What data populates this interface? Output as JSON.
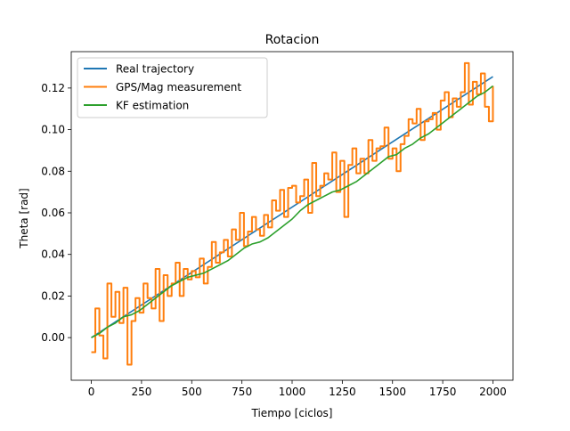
{
  "chart_data": {
    "type": "line",
    "title": "Rotacion",
    "xlabel": "Tiempo [ciclos]",
    "ylabel": "Theta [rad]",
    "xlim": [
      -100,
      2100
    ],
    "ylim": [
      -0.0205,
      0.1375
    ],
    "x_ticks": [
      0,
      250,
      500,
      750,
      1000,
      1250,
      1500,
      1750,
      2000
    ],
    "y_ticks": [
      0.0,
      0.02,
      0.04,
      0.06,
      0.08,
      0.1,
      0.12
    ],
    "x_tick_labels": [
      "0",
      "250",
      "500",
      "750",
      "1000",
      "1250",
      "1500",
      "1750",
      "2000"
    ],
    "y_tick_labels": [
      "0.00",
      "0.02",
      "0.04",
      "0.06",
      "0.08",
      "0.10",
      "0.12"
    ],
    "grid": false,
    "legend_position": "upper-left",
    "series": [
      {
        "name": "Real trajectory",
        "color": "#1f77b4",
        "style": "line",
        "x": [
          0,
          2000
        ],
        "y": [
          0.0,
          0.1255
        ]
      },
      {
        "name": "GPS/Mag measurement",
        "color": "#ff7f0e",
        "style": "step",
        "x": [
          0,
          20,
          40,
          60,
          80,
          100,
          120,
          140,
          160,
          180,
          200,
          220,
          240,
          260,
          280,
          300,
          320,
          340,
          360,
          380,
          400,
          420,
          440,
          460,
          480,
          500,
          520,
          540,
          560,
          580,
          600,
          620,
          640,
          660,
          680,
          700,
          720,
          740,
          760,
          780,
          800,
          820,
          840,
          860,
          880,
          900,
          920,
          940,
          960,
          980,
          1000,
          1020,
          1040,
          1060,
          1080,
          1100,
          1120,
          1140,
          1160,
          1180,
          1200,
          1220,
          1240,
          1260,
          1280,
          1300,
          1320,
          1340,
          1360,
          1380,
          1400,
          1420,
          1440,
          1460,
          1480,
          1500,
          1520,
          1540,
          1560,
          1580,
          1600,
          1620,
          1640,
          1660,
          1680,
          1700,
          1720,
          1740,
          1760,
          1780,
          1800,
          1820,
          1840,
          1860,
          1880,
          1900,
          1920,
          1940,
          1960,
          1980,
          2000
        ],
        "y": [
          -0.007,
          0.014,
          0.001,
          -0.01,
          0.026,
          0.01,
          0.022,
          0.007,
          0.024,
          -0.013,
          0.008,
          0.019,
          0.012,
          0.026,
          0.019,
          0.014,
          0.033,
          0.008,
          0.03,
          0.02,
          0.026,
          0.036,
          0.02,
          0.033,
          0.028,
          0.032,
          0.029,
          0.038,
          0.026,
          0.034,
          0.046,
          0.036,
          0.041,
          0.047,
          0.039,
          0.052,
          0.047,
          0.06,
          0.044,
          0.051,
          0.058,
          0.052,
          0.049,
          0.059,
          0.053,
          0.066,
          0.061,
          0.071,
          0.058,
          0.072,
          0.073,
          0.065,
          0.068,
          0.076,
          0.06,
          0.084,
          0.068,
          0.073,
          0.079,
          0.076,
          0.089,
          0.07,
          0.085,
          0.058,
          0.083,
          0.091,
          0.079,
          0.086,
          0.079,
          0.095,
          0.085,
          0.091,
          0.092,
          0.101,
          0.086,
          0.091,
          0.08,
          0.093,
          0.097,
          0.105,
          0.103,
          0.11,
          0.095,
          0.104,
          0.105,
          0.108,
          0.1,
          0.114,
          0.118,
          0.106,
          0.115,
          0.111,
          0.118,
          0.132,
          0.112,
          0.123,
          0.117,
          0.127,
          0.111,
          0.104,
          0.121
        ]
      },
      {
        "name": "KF estimation",
        "color": "#2ca02c",
        "style": "line",
        "x": [
          0,
          40,
          80,
          120,
          160,
          200,
          240,
          280,
          320,
          360,
          400,
          440,
          480,
          520,
          560,
          600,
          640,
          680,
          720,
          760,
          800,
          840,
          880,
          920,
          960,
          1000,
          1040,
          1080,
          1120,
          1160,
          1200,
          1240,
          1280,
          1320,
          1360,
          1400,
          1440,
          1480,
          1520,
          1560,
          1600,
          1640,
          1680,
          1720,
          1760,
          1800,
          1840,
          1880,
          1920,
          1960,
          2000
        ],
        "y": [
          0.0,
          0.002,
          0.005,
          0.007,
          0.01,
          0.011,
          0.013,
          0.016,
          0.019,
          0.022,
          0.025,
          0.027,
          0.029,
          0.03,
          0.031,
          0.033,
          0.035,
          0.037,
          0.04,
          0.043,
          0.045,
          0.046,
          0.048,
          0.051,
          0.054,
          0.057,
          0.061,
          0.064,
          0.066,
          0.068,
          0.07,
          0.071,
          0.073,
          0.075,
          0.078,
          0.081,
          0.084,
          0.087,
          0.088,
          0.091,
          0.093,
          0.096,
          0.098,
          0.101,
          0.104,
          0.107,
          0.11,
          0.113,
          0.116,
          0.118,
          0.121
        ]
      }
    ]
  }
}
